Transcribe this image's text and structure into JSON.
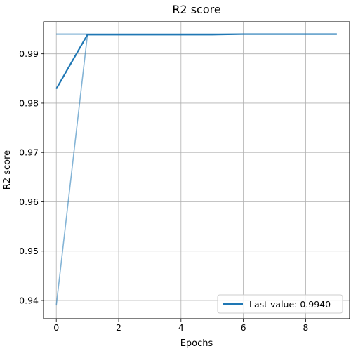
{
  "chart_data": {
    "type": "line",
    "title": "R2 score",
    "xlabel": "Epochs",
    "ylabel": "R2 score",
    "xlim": [
      -0.41,
      9.41
    ],
    "ylim": [
      0.9363,
      0.9965
    ],
    "x_ticks": [
      0,
      2,
      4,
      6,
      8
    ],
    "y_ticks": [
      0.94,
      0.95,
      0.96,
      0.97,
      0.98,
      0.99
    ],
    "grid": true,
    "legend_placement": "lower-right",
    "series": [
      {
        "name": "Last value: 0.9940",
        "role": "smoothed",
        "color": "#1f77b4",
        "x": [
          0,
          1,
          2,
          3,
          4,
          5,
          6,
          7,
          8,
          9
        ],
        "values": [
          0.9829,
          0.9939,
          0.9939,
          0.9939,
          0.9939,
          0.9939,
          0.994,
          0.994,
          0.994,
          0.994
        ]
      },
      {
        "role": "raw",
        "color": "#1f77b4",
        "x": [
          0,
          1,
          2,
          3,
          4,
          5,
          6,
          7,
          8,
          9
        ],
        "values": [
          0.939,
          0.9939,
          0.9939,
          0.9939,
          0.9939,
          0.9939,
          0.994,
          0.994,
          0.994,
          0.994
        ]
      },
      {
        "role": "last-value",
        "color": "#1f77b4",
        "x": [
          0,
          9
        ],
        "values": [
          0.994,
          0.994
        ]
      }
    ]
  }
}
